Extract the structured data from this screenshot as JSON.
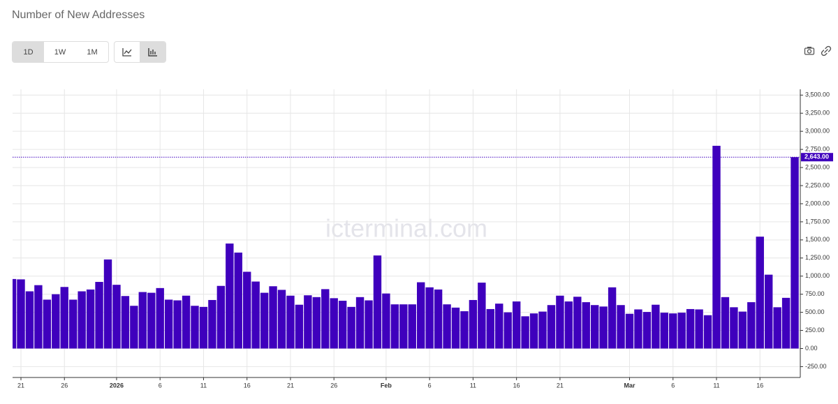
{
  "toolbar": {
    "intervals": [
      "1D",
      "1W",
      "1M"
    ]
  },
  "watermark": "icterminal.com",
  "chart_data": {
    "type": "bar",
    "title": "Number of New Addresses",
    "color": "#3f00bd",
    "grid": true,
    "categories": [
      null,
      "21",
      null,
      null,
      null,
      null,
      "26",
      null,
      null,
      null,
      null,
      null,
      "2026",
      null,
      null,
      null,
      null,
      "6",
      null,
      null,
      null,
      null,
      "11",
      null,
      null,
      null,
      null,
      "16",
      null,
      null,
      null,
      null,
      "21",
      null,
      null,
      null,
      null,
      "26",
      null,
      null,
      null,
      null,
      null,
      "Feb",
      null,
      null,
      null,
      null,
      "6",
      null,
      null,
      null,
      null,
      "11",
      null,
      null,
      null,
      null,
      "16",
      null,
      null,
      null,
      null,
      "21",
      null,
      null,
      null,
      null,
      null,
      null,
      null,
      "Mar",
      null,
      null,
      null,
      null,
      "6",
      null,
      null,
      null,
      null,
      "11",
      null,
      null,
      null,
      null,
      "16",
      null,
      null,
      null,
      null
    ],
    "values": [
      960,
      955,
      790,
      875,
      675,
      750,
      850,
      675,
      790,
      815,
      920,
      1230,
      880,
      725,
      590,
      780,
      770,
      835,
      675,
      665,
      730,
      590,
      575,
      670,
      865,
      1450,
      1325,
      1060,
      925,
      770,
      860,
      810,
      730,
      605,
      735,
      710,
      820,
      695,
      660,
      575,
      710,
      665,
      1285,
      760,
      610,
      610,
      610,
      915,
      845,
      815,
      610,
      565,
      515,
      670,
      910,
      545,
      620,
      500,
      650,
      445,
      485,
      510,
      600,
      730,
      650,
      715,
      640,
      600,
      580,
      845,
      600,
      480,
      540,
      505,
      605,
      495,
      485,
      495,
      545,
      540,
      460,
      2800,
      710,
      570,
      510,
      640,
      1545,
      1020,
      570,
      700,
      2643
    ],
    "value_labels": [
      null,
      null,
      null,
      null,
      null,
      null,
      null,
      null,
      null,
      null,
      null,
      null,
      null,
      null,
      null,
      null,
      null,
      null,
      null,
      null,
      null,
      null,
      null,
      null,
      null,
      null,
      null,
      null,
      null,
      null,
      null,
      null,
      null,
      null,
      null,
      null,
      null,
      null,
      null,
      null,
      null,
      null,
      null,
      null,
      null,
      null,
      null,
      null,
      null,
      null,
      null,
      null,
      null,
      null,
      null,
      null,
      null,
      null,
      null,
      null,
      null,
      null,
      null,
      null,
      null,
      null,
      null,
      null,
      null,
      null,
      null,
      null,
      null,
      null,
      null,
      null,
      null,
      null,
      null,
      null,
      null,
      null,
      null,
      null,
      null,
      null,
      null,
      null,
      null,
      null,
      "2,643.00"
    ],
    "ylim": [
      -400,
      3580
    ],
    "yticks": [
      {
        "value": -250,
        "label": "-250.00"
      },
      {
        "value": 0,
        "label": "0.00"
      },
      {
        "value": 250,
        "label": "250.00"
      },
      {
        "value": 500,
        "label": "500.00"
      },
      {
        "value": 750,
        "label": "750.00"
      },
      {
        "value": 1000,
        "label": "1,000.00"
      },
      {
        "value": 1250,
        "label": "1,250.00"
      },
      {
        "value": 1500,
        "label": "1,500.00"
      },
      {
        "value": 1750,
        "label": "1,750.00"
      },
      {
        "value": 2000,
        "label": "2,000.00"
      },
      {
        "value": 2250,
        "label": "2,250.00"
      },
      {
        "value": 2500,
        "label": "2,500.00"
      },
      {
        "value": 2750,
        "label": "2,750.00"
      },
      {
        "value": 3000,
        "label": "3,000.00"
      },
      {
        "value": 3250,
        "label": "3,250.00"
      },
      {
        "value": 3500,
        "label": "3,500.00"
      }
    ]
  }
}
